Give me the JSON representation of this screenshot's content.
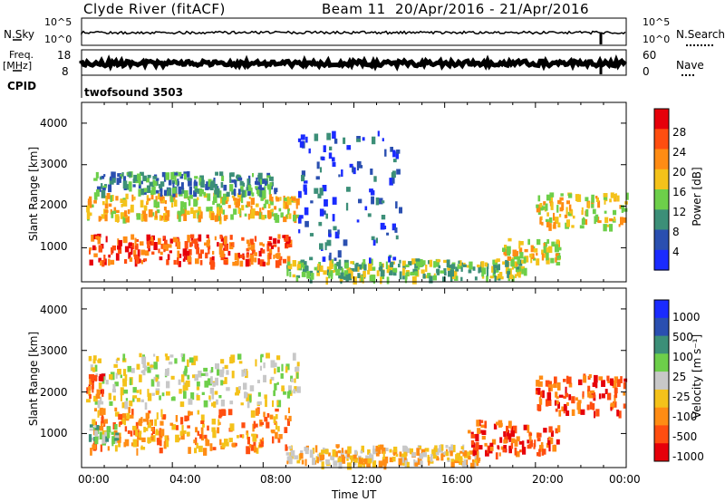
{
  "header": {
    "title": "Clyde River (fitACF)",
    "beam": "Beam 11",
    "dates": "20/Apr/2016 - 21/Apr/2016"
  },
  "top_panels": {
    "nsky_label": "N.Sky",
    "nsky_ticks": [
      "10^5",
      "10^0"
    ],
    "nsearch_label": "N.Search",
    "nsearch_ticks": [
      "10^5",
      "10^0"
    ],
    "freq_label_1": "Freq.",
    "freq_label_2": "[MHz]",
    "freq_ticks": [
      "18",
      "8"
    ],
    "nave_label": "Nave",
    "nave_ticks": [
      "60",
      "0"
    ],
    "cpid_label": "CPID",
    "cpid_value": "twofsound 3503"
  },
  "chart_data": [
    {
      "type": "heatmap",
      "quantity": "Power",
      "ylabel": "Slant Range [km]",
      "ylim": [
        180,
        4500
      ],
      "yticks": [
        "1000",
        "2000",
        "3000",
        "4000"
      ],
      "xlim_hours": [
        0,
        24
      ],
      "colorbar_label": "Power [dB]",
      "colorbar_ticks": [
        "4",
        "8",
        "12",
        "16",
        "20",
        "24",
        "28"
      ],
      "colorbar_colors": [
        "#1a2bff",
        "#2a4fb0",
        "#3c8f78",
        "#6dcf4a",
        "#f4c21a",
        "#ff8c14",
        "#ff4e10",
        "#e6000a"
      ],
      "echo_bands": [
        {
          "t": [
            0.3,
            9.2
          ],
          "r": [
            600,
            1300
          ],
          "level": 6
        },
        {
          "t": [
            0.2,
            9.5
          ],
          "r": [
            1700,
            2300
          ],
          "level": 4
        },
        {
          "t": [
            0.5,
            8.5
          ],
          "r": [
            2300,
            2800
          ],
          "level": 2
        },
        {
          "t": [
            9.0,
            19.5
          ],
          "r": [
            250,
            700
          ],
          "level": 3
        },
        {
          "t": [
            18.5,
            21.0
          ],
          "r": [
            600,
            1200
          ],
          "level": 4
        },
        {
          "t": [
            20.0,
            24.0
          ],
          "r": [
            1500,
            2300
          ],
          "level": 4
        },
        {
          "t": [
            9.5,
            14.0
          ],
          "r": [
            700,
            3800
          ],
          "level": 1
        }
      ]
    },
    {
      "type": "heatmap",
      "quantity": "Velocity",
      "ylabel": "Slant Range [km]",
      "ylim": [
        180,
        4500
      ],
      "yticks": [
        "1000",
        "2000",
        "3000",
        "4000"
      ],
      "xlim_hours": [
        0,
        24
      ],
      "xticks": [
        "00:00",
        "04:00",
        "08:00",
        "12:00",
        "16:00",
        "20:00",
        "00:00"
      ],
      "xlabel": "Time UT",
      "colorbar_label": "Velocity [m s⁻¹]",
      "colorbar_ticks": [
        "1000",
        "500",
        "100",
        "25",
        "-25",
        "-100",
        "-500",
        "-1000"
      ],
      "colorbar_colors": [
        "#1a2bff",
        "#2a4fb0",
        "#3c8f78",
        "#6dcf4a",
        "#c8c8c8",
        "#f4c21a",
        "#ff8c14",
        "#ff4e10",
        "#e6000a"
      ],
      "echo_bands": [
        {
          "t": [
            0.3,
            9.2
          ],
          "r": [
            600,
            1600
          ],
          "level": 6
        },
        {
          "t": [
            0.2,
            9.5
          ],
          "r": [
            1700,
            2900
          ],
          "level": 4
        },
        {
          "t": [
            9.0,
            17.5
          ],
          "r": [
            250,
            700
          ],
          "level": 5
        },
        {
          "t": [
            17.0,
            21.0
          ],
          "r": [
            500,
            1300
          ],
          "level": 7
        },
        {
          "t": [
            20.0,
            24.0
          ],
          "r": [
            1500,
            2400
          ],
          "level": 7
        },
        {
          "t": [
            0.2,
            1.0
          ],
          "r": [
            1900,
            2400
          ],
          "level": 7
        },
        {
          "t": [
            0.3,
            1.5
          ],
          "r": [
            800,
            1200
          ],
          "level": 3
        }
      ]
    }
  ]
}
